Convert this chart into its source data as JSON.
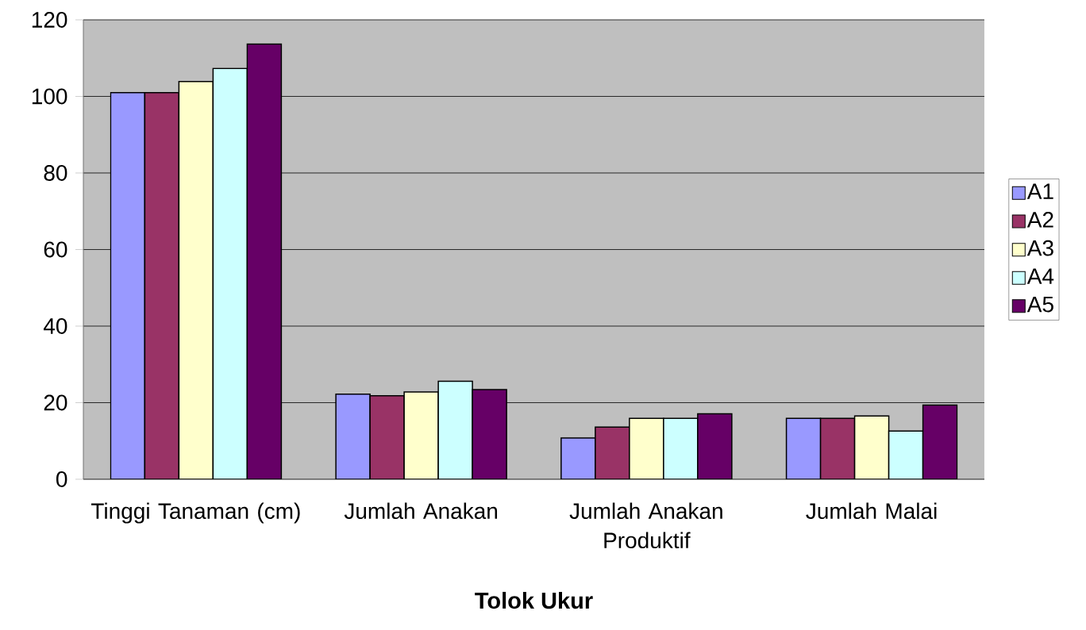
{
  "chart_data": {
    "type": "bar",
    "xlabel": "Tolok Ukur",
    "categories": [
      "Tinggi Tanaman (cm)",
      "Jumlah Anakan",
      "Jumlah Anakan Produktif",
      "Jumlah Malai"
    ],
    "series": [
      {
        "name": "A1",
        "color": "#9999ff",
        "values": [
          101,
          22.2,
          10.8,
          15.9
        ]
      },
      {
        "name": "A2",
        "color": "#993366",
        "values": [
          101,
          21.8,
          13.6,
          15.9
        ]
      },
      {
        "name": "A3",
        "color": "#ffffcc",
        "values": [
          103.9,
          22.8,
          15.9,
          16.5
        ]
      },
      {
        "name": "A4",
        "color": "#ccffff",
        "values": [
          107.3,
          25.6,
          15.9,
          12.6
        ]
      },
      {
        "name": "A5",
        "color": "#660066",
        "values": [
          113.7,
          23.4,
          17.1,
          19.4
        ]
      }
    ],
    "ylim": [
      0,
      120
    ],
    "yticks": [
      0,
      20,
      40,
      60,
      80,
      100,
      120
    ],
    "grid": "y",
    "legend": "right"
  }
}
